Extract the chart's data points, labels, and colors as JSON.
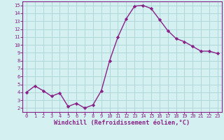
{
  "x": [
    0,
    1,
    2,
    3,
    4,
    5,
    6,
    7,
    8,
    9,
    10,
    11,
    12,
    13,
    14,
    15,
    16,
    17,
    18,
    19,
    20,
    21,
    22,
    23
  ],
  "y": [
    4.0,
    4.8,
    4.2,
    3.5,
    3.9,
    2.2,
    2.6,
    2.0,
    2.4,
    4.2,
    8.0,
    11.0,
    13.3,
    14.9,
    15.0,
    14.6,
    13.2,
    11.8,
    10.8,
    10.4,
    9.8,
    9.2,
    9.2,
    8.9
  ],
  "line_color": "#882288",
  "marker": "D",
  "marker_size": 2.2,
  "bg_color": "#d4f0f0",
  "grid_color": "#b0d8d8",
  "xlabel": "Windchill (Refroidissement éolien,°C)",
  "ylabel": "",
  "xlim": [
    -0.5,
    23.5
  ],
  "ylim": [
    1.5,
    15.5
  ],
  "yticks": [
    2,
    3,
    4,
    5,
    6,
    7,
    8,
    9,
    10,
    11,
    12,
    13,
    14,
    15
  ],
  "xticks": [
    0,
    1,
    2,
    3,
    4,
    5,
    6,
    7,
    8,
    9,
    10,
    11,
    12,
    13,
    14,
    15,
    16,
    17,
    18,
    19,
    20,
    21,
    22,
    23
  ],
  "axis_color": "#882288",
  "tick_label_color": "#882288",
  "tick_fontsize": 5.0,
  "xlabel_fontsize": 6.2,
  "linewidth": 1.0
}
